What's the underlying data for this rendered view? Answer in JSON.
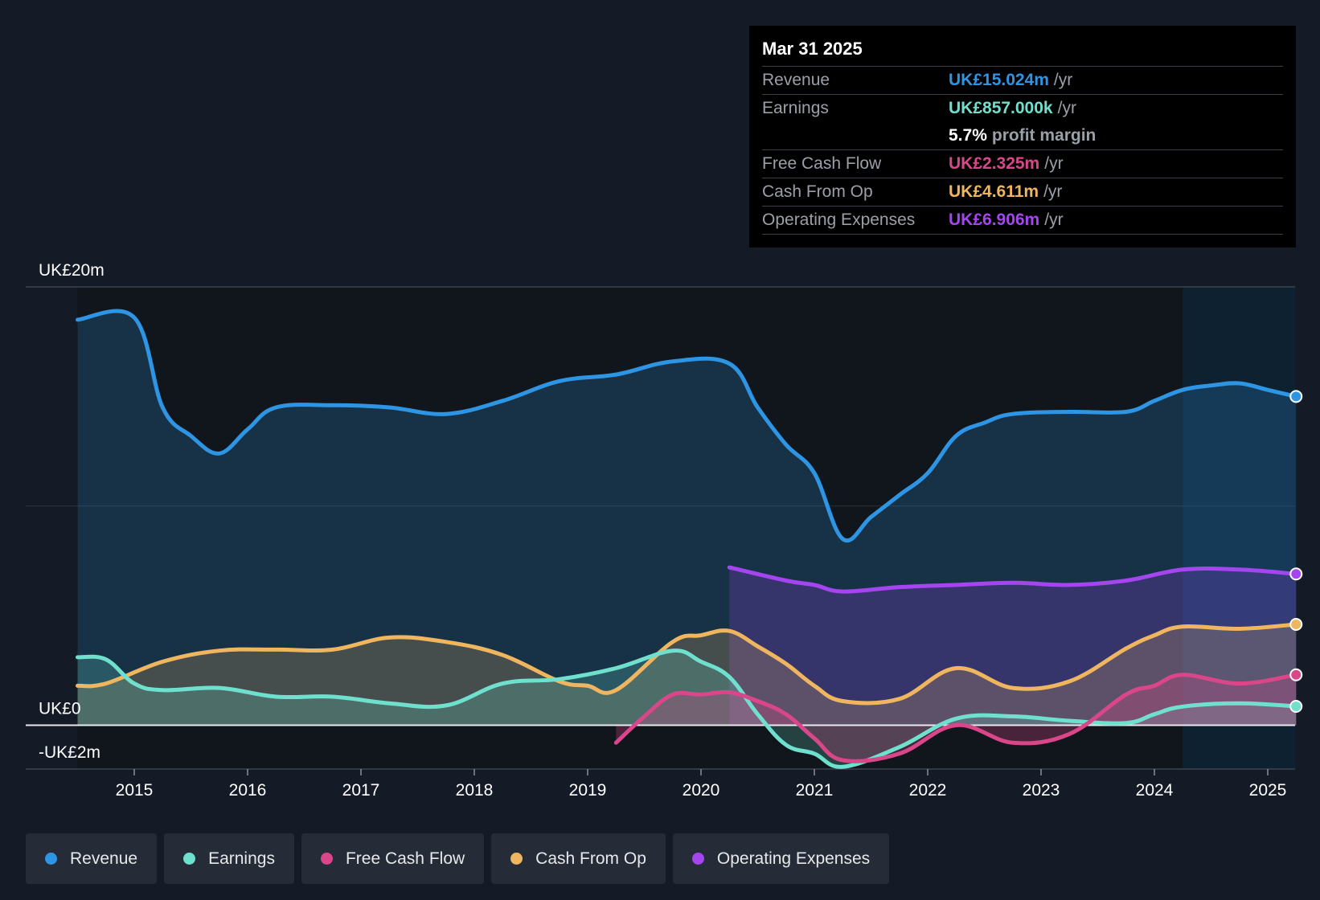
{
  "tooltip": {
    "date": "Mar 31 2025",
    "rows": [
      {
        "label": "Revenue",
        "value": "UK£15.024m",
        "unit": "/yr",
        "color": "#2d95e3"
      },
      {
        "label": "Earnings",
        "value": "UK£857.000k",
        "unit": "/yr",
        "color": "#6fe0cd"
      },
      {
        "label": "",
        "value": "5.7%",
        "unit": "profit margin",
        "color": "#ffffff"
      },
      {
        "label": "Free Cash Flow",
        "value": "UK£2.325m",
        "unit": "/yr",
        "color": "#d9478a"
      },
      {
        "label": "Cash From Op",
        "value": "UK£4.611m",
        "unit": "/yr",
        "color": "#efb55f"
      },
      {
        "label": "Operating Expenses",
        "value": "UK£6.906m",
        "unit": "/yr",
        "color": "#a445f0"
      }
    ]
  },
  "legend": [
    {
      "label": "Revenue",
      "color": "#2d95e3"
    },
    {
      "label": "Earnings",
      "color": "#6fe0cd"
    },
    {
      "label": "Free Cash Flow",
      "color": "#d9478a"
    },
    {
      "label": "Cash From Op",
      "color": "#efb55f"
    },
    {
      "label": "Operating Expenses",
      "color": "#a445f0"
    }
  ],
  "chart_data": {
    "type": "area",
    "title": "",
    "ylabel": "",
    "xlabel": "",
    "ylim": [
      -2,
      20
    ],
    "y_tick_labels": [
      {
        "value": 20,
        "label": "UK£20m"
      },
      {
        "value": 0,
        "label": "UK£0"
      },
      {
        "value": -2,
        "label": "-UK£2m"
      }
    ],
    "xlim": [
      2014.0,
      2025.25
    ],
    "x_ticks": [
      2015,
      2016,
      2017,
      2018,
      2019,
      2020,
      2021,
      2022,
      2023,
      2024,
      2025
    ],
    "x_tick_labels": [
      "2015",
      "2016",
      "2017",
      "2018",
      "2019",
      "2020",
      "2021",
      "2022",
      "2023",
      "2024",
      "2025"
    ],
    "highlight_start": 2024.25,
    "series": [
      {
        "name": "Revenue",
        "color": "#2d95e3",
        "area": true,
        "x": [
          2014.5,
          2015.0,
          2015.25,
          2015.5,
          2015.75,
          2016.0,
          2016.25,
          2016.75,
          2017.25,
          2017.75,
          2018.25,
          2018.75,
          2019.25,
          2019.75,
          2020.25,
          2020.5,
          2020.75,
          2021.0,
          2021.25,
          2021.5,
          2021.75,
          2022.0,
          2022.25,
          2022.5,
          2022.75,
          2023.25,
          2023.75,
          2024.0,
          2024.25,
          2024.5,
          2024.75,
          2025.0,
          2025.25
        ],
        "values": [
          18.5,
          18.6,
          14.5,
          13.2,
          12.4,
          13.5,
          14.5,
          14.6,
          14.5,
          14.2,
          14.8,
          15.7,
          16.0,
          16.6,
          16.5,
          14.5,
          12.8,
          11.5,
          8.5,
          9.5,
          10.5,
          11.5,
          13.2,
          13.8,
          14.2,
          14.3,
          14.3,
          14.8,
          15.3,
          15.5,
          15.6,
          15.3,
          15.0
        ]
      },
      {
        "name": "Operating Expenses",
        "color": "#a445f0",
        "area": true,
        "x": [
          2020.25,
          2020.75,
          2021.0,
          2021.25,
          2021.75,
          2022.25,
          2022.75,
          2023.25,
          2023.75,
          2024.25,
          2024.75,
          2025.25
        ],
        "values": [
          7.2,
          6.6,
          6.4,
          6.1,
          6.3,
          6.4,
          6.5,
          6.4,
          6.6,
          7.1,
          7.1,
          6.9
        ]
      },
      {
        "name": "Cash From Op",
        "color": "#efb55f",
        "area": true,
        "x": [
          2014.5,
          2014.75,
          2015.25,
          2015.75,
          2016.25,
          2016.75,
          2017.25,
          2017.75,
          2018.25,
          2018.75,
          2019.0,
          2019.25,
          2019.75,
          2020.0,
          2020.25,
          2020.5,
          2020.75,
          2021.0,
          2021.25,
          2021.75,
          2022.25,
          2022.75,
          2023.25,
          2023.75,
          2024.0,
          2024.25,
          2024.75,
          2025.25
        ],
        "values": [
          1.8,
          1.9,
          2.9,
          3.4,
          3.45,
          3.45,
          4.0,
          3.8,
          3.2,
          2.0,
          1.8,
          1.6,
          3.8,
          4.1,
          4.3,
          3.6,
          2.8,
          1.8,
          1.1,
          1.2,
          2.6,
          1.7,
          2.0,
          3.5,
          4.1,
          4.5,
          4.4,
          4.6
        ]
      },
      {
        "name": "Earnings",
        "color": "#6fe0cd",
        "area": true,
        "x": [
          2014.5,
          2014.75,
          2015.0,
          2015.25,
          2015.75,
          2016.25,
          2016.75,
          2017.25,
          2017.75,
          2018.25,
          2018.75,
          2019.25,
          2019.75,
          2020.0,
          2020.25,
          2020.5,
          2020.75,
          2021.0,
          2021.25,
          2021.75,
          2022.25,
          2022.75,
          2023.25,
          2023.75,
          2024.0,
          2024.25,
          2024.75,
          2025.25
        ],
        "values": [
          3.1,
          3.0,
          1.9,
          1.6,
          1.7,
          1.3,
          1.3,
          1.0,
          0.9,
          1.9,
          2.1,
          2.6,
          3.4,
          2.9,
          2.2,
          0.5,
          -0.9,
          -1.3,
          -1.9,
          -1.0,
          0.3,
          0.4,
          0.2,
          0.1,
          0.5,
          0.85,
          1.0,
          0.86
        ]
      },
      {
        "name": "Free Cash Flow",
        "color": "#d9478a",
        "area": true,
        "x": [
          2019.25,
          2019.5,
          2019.75,
          2020.0,
          2020.25,
          2020.5,
          2020.75,
          2021.0,
          2021.25,
          2021.75,
          2022.25,
          2022.75,
          2023.25,
          2023.75,
          2024.0,
          2024.25,
          2024.75,
          2025.25
        ],
        "values": [
          -0.8,
          0.4,
          1.4,
          1.4,
          1.5,
          1.1,
          0.5,
          -0.6,
          -1.6,
          -1.3,
          0.0,
          -0.8,
          -0.4,
          1.4,
          1.8,
          2.3,
          1.9,
          2.3
        ]
      }
    ]
  }
}
